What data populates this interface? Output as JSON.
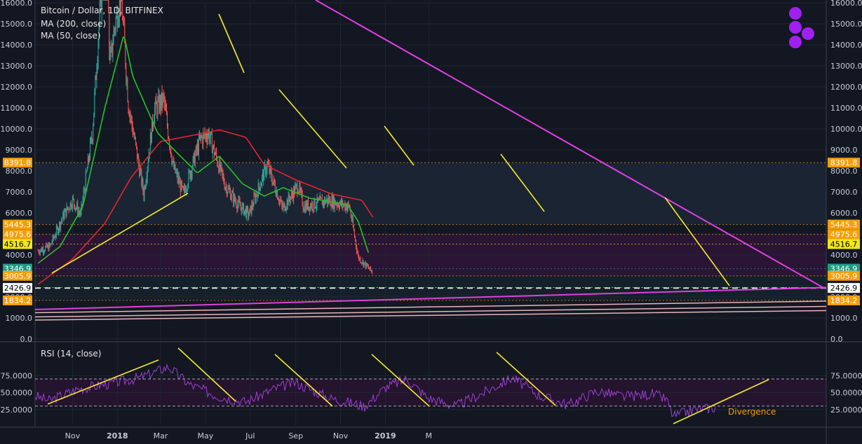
{
  "header": {
    "title": "Bitcoin / Dollar, 1D, BITFINEX",
    "indicators": [
      "MA (200, close)",
      "MA (50, close)"
    ]
  },
  "rsi": {
    "label": "RSI (14, close)",
    "ticks": [
      "75.0000",
      "50.0000",
      "25.0000"
    ],
    "annotation": "Divergence"
  },
  "colors": {
    "background": "#131722",
    "up_candle": "#26a69a",
    "down_candle": "#ef5350",
    "ma200": "#e3262e",
    "ma50": "#27c227",
    "trendline": "#e040e0",
    "yellow_lines": "#f5ea29",
    "rsi_line": "#9c3fd0",
    "logo": "#a020f0"
  },
  "chart_data": {
    "type": "candlestick",
    "title": "Bitcoin / Dollar, 1D, BITFINEX",
    "x_ticks": [
      "Nov",
      "2018",
      "Mar",
      "May",
      "Jul",
      "Sep",
      "Nov",
      "2019",
      "M"
    ],
    "y_ticks": [
      "16000.0",
      "15000.0",
      "14000.0",
      "13000.0",
      "12000.0",
      "11000.0",
      "10000.0",
      "9000.0",
      "8000.0",
      "7000.0",
      "6000.0",
      "5000.0",
      "4000.0",
      "3000.0",
      "2000.0",
      "1000.0",
      "0.0"
    ],
    "ylim": [
      0,
      16000
    ],
    "price_levels": [
      {
        "value": 8391.8,
        "label": "8391.8",
        "color": "#f59e0b"
      },
      {
        "value": 5445.3,
        "label": "5445.3",
        "color": "#f59e0b"
      },
      {
        "value": 4975.6,
        "label": "4975.6",
        "color": "#f59e0b"
      },
      {
        "value": 4516.7,
        "label": "4516.7",
        "color": "#f2e61a"
      },
      {
        "value": 3346.9,
        "label": "3346.9",
        "color": "#1e9b8a"
      },
      {
        "value": 3005.9,
        "label": "3005.9",
        "color": "#f59e0b"
      },
      {
        "value": 2426.9,
        "label": "2426.9",
        "color": "#ffffff"
      },
      {
        "value": 1834.2,
        "label": "1834.2",
        "color": "#f59e0b"
      }
    ],
    "price_keypoints": [
      [
        "2017-09-15",
        4200
      ],
      [
        "2017-10-01",
        4400
      ],
      [
        "2017-10-20",
        5900
      ],
      [
        "2017-11-01",
        6600
      ],
      [
        "2017-11-12",
        5900
      ],
      [
        "2017-11-28",
        9800
      ],
      [
        "2017-12-08",
        15500
      ],
      [
        "2017-12-17",
        19000
      ],
      [
        "2017-12-22",
        13000
      ],
      [
        "2017-12-28",
        14800
      ],
      [
        "2018-01-06",
        16500
      ],
      [
        "2018-01-16",
        11200
      ],
      [
        "2018-02-06",
        6900
      ],
      [
        "2018-02-20",
        10900
      ],
      [
        "2018-03-05",
        11400
      ],
      [
        "2018-03-18",
        8200
      ],
      [
        "2018-04-01",
        6900
      ],
      [
        "2018-04-24",
        9500
      ],
      [
        "2018-05-05",
        9800
      ],
      [
        "2018-05-28",
        7300
      ],
      [
        "2018-06-12",
        6500
      ],
      [
        "2018-06-29",
        5900
      ],
      [
        "2018-07-24",
        8300
      ],
      [
        "2018-08-14",
        6200
      ],
      [
        "2018-09-04",
        7300
      ],
      [
        "2018-09-12",
        6300
      ],
      [
        "2018-10-15",
        6600
      ],
      [
        "2018-11-13",
        6300
      ],
      [
        "2018-11-25",
        3900
      ],
      [
        "2018-12-08",
        3400
      ],
      [
        "2018-12-14",
        3200
      ]
    ],
    "ma50_keypoints": [
      [
        "2017-09-15",
        3600
      ],
      [
        "2017-10-15",
        4400
      ],
      [
        "2017-11-15",
        6300
      ],
      [
        "2017-12-15",
        11000
      ],
      [
        "2018-01-10",
        14500
      ],
      [
        "2018-01-22",
        12500
      ],
      [
        "2018-02-25",
        9800
      ],
      [
        "2018-03-25",
        8800
      ],
      [
        "2018-04-20",
        7900
      ],
      [
        "2018-05-20",
        8700
      ],
      [
        "2018-06-20",
        7400
      ],
      [
        "2018-07-20",
        6800
      ],
      [
        "2018-08-15",
        7200
      ],
      [
        "2018-09-20",
        6700
      ],
      [
        "2018-11-10",
        6400
      ],
      [
        "2018-11-25",
        5600
      ],
      [
        "2018-12-10",
        4000
      ]
    ],
    "ma200_keypoints": [
      [
        "2017-09-15",
        2600
      ],
      [
        "2017-11-01",
        3800
      ],
      [
        "2017-12-15",
        5500
      ],
      [
        "2018-01-20",
        7700
      ],
      [
        "2018-03-01",
        9400
      ],
      [
        "2018-04-15",
        9700
      ],
      [
        "2018-05-20",
        9950
      ],
      [
        "2018-06-25",
        9600
      ],
      [
        "2018-07-20",
        8300
      ],
      [
        "2018-08-30",
        7600
      ],
      [
        "2018-10-20",
        6900
      ],
      [
        "2018-11-30",
        6600
      ],
      [
        "2018-12-15",
        5800
      ]
    ]
  }
}
